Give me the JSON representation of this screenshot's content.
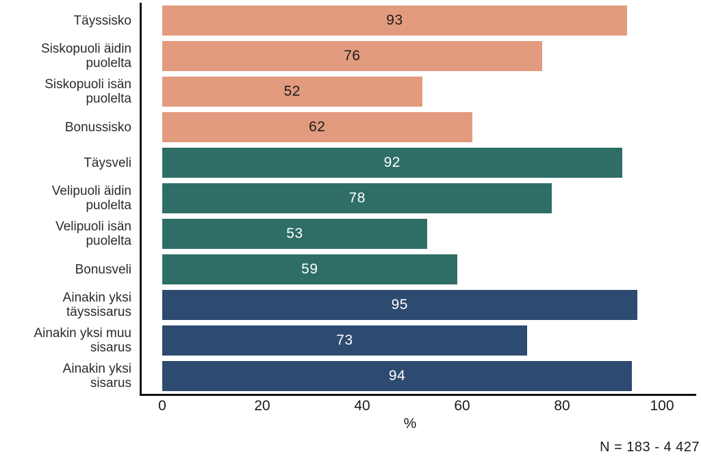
{
  "chart_data": {
    "type": "bar",
    "orientation": "horizontal",
    "title": "",
    "xlabel": "%",
    "xlim": [
      0,
      100
    ],
    "x_ticks": [
      0,
      20,
      40,
      60,
      80,
      100
    ],
    "grid": false,
    "legend": false,
    "note": "N = 183 - 4 427",
    "groups": [
      {
        "name": "sisters",
        "color": "#E29B7E",
        "value_text_color": "#1c1c1c"
      },
      {
        "name": "brothers",
        "color": "#2F6E66",
        "value_text_color": "#ffffff"
      },
      {
        "name": "any-sibling",
        "color": "#2D4A70",
        "value_text_color": "#ffffff"
      }
    ],
    "categories": [
      "Täyssisko",
      "Siskopuoli äidin puolelta",
      "Siskopuoli isän puolelta",
      "Bonussisko",
      "Täysveli",
      "Velipuoli äidin puolelta",
      "Velipuoli isän puolelta",
      "Bonusveli",
      "Ainakin yksi täyssisarus",
      "Ainakin yksi muu sisarus",
      "Ainakin yksi sisarus"
    ],
    "values": [
      93,
      76,
      52,
      62,
      92,
      78,
      53,
      59,
      95,
      73,
      94
    ],
    "bars": [
      {
        "label_lines": [
          "Täyssisko"
        ],
        "value": 93,
        "group": 0
      },
      {
        "label_lines": [
          "Siskopuoli äidin",
          "puolelta"
        ],
        "value": 76,
        "group": 0
      },
      {
        "label_lines": [
          "Siskopuoli isän",
          "puolelta"
        ],
        "value": 52,
        "group": 0
      },
      {
        "label_lines": [
          "Bonussisko"
        ],
        "value": 62,
        "group": 0
      },
      {
        "label_lines": [
          "Täysveli"
        ],
        "value": 92,
        "group": 1
      },
      {
        "label_lines": [
          "Velipuoli äidin",
          "puolelta"
        ],
        "value": 78,
        "group": 1
      },
      {
        "label_lines": [
          "Velipuoli isän",
          "puolelta"
        ],
        "value": 53,
        "group": 1
      },
      {
        "label_lines": [
          "Bonusveli"
        ],
        "value": 59,
        "group": 1
      },
      {
        "label_lines": [
          "Ainakin yksi",
          "täyssisarus"
        ],
        "value": 95,
        "group": 2
      },
      {
        "label_lines": [
          "Ainakin yksi muu",
          "sisarus"
        ],
        "value": 73,
        "group": 2
      },
      {
        "label_lines": [
          "Ainakin yksi",
          "sisarus"
        ],
        "value": 94,
        "group": 2
      }
    ]
  }
}
